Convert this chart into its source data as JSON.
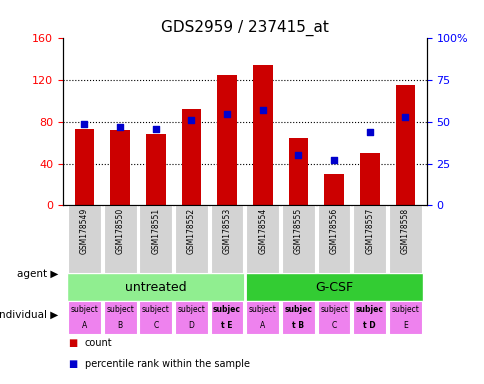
{
  "title": "GDS2959 / 237415_at",
  "samples": [
    "GSM178549",
    "GSM178550",
    "GSM178551",
    "GSM178552",
    "GSM178553",
    "GSM178554",
    "GSM178555",
    "GSM178556",
    "GSM178557",
    "GSM178558"
  ],
  "counts": [
    73,
    72,
    68,
    92,
    125,
    135,
    65,
    30,
    50,
    115
  ],
  "percentiles": [
    49,
    47,
    46,
    51,
    55,
    57,
    30,
    27,
    44,
    53
  ],
  "left_ylim": [
    0,
    160
  ],
  "right_ylim": [
    0,
    100
  ],
  "left_yticks": [
    0,
    40,
    80,
    120,
    160
  ],
  "right_yticks": [
    0,
    25,
    50,
    75,
    100
  ],
  "right_yticklabels": [
    "0",
    "25",
    "50",
    "75",
    "100%"
  ],
  "bar_color": "#cc0000",
  "dot_color": "#0000cc",
  "agent_groups": [
    {
      "label": "untreated",
      "start": 0,
      "end": 5,
      "color": "#90ee90"
    },
    {
      "label": "G-CSF",
      "start": 5,
      "end": 10,
      "color": "#33cc33"
    }
  ],
  "highlighted_individuals": [
    4,
    6,
    8
  ],
  "agent_label": "agent",
  "individual_label": "individual",
  "legend_count_color": "#cc0000",
  "legend_percentile_color": "#0000cc",
  "xticklabel_bg": "#d3d3d3",
  "title_fontsize": 11
}
